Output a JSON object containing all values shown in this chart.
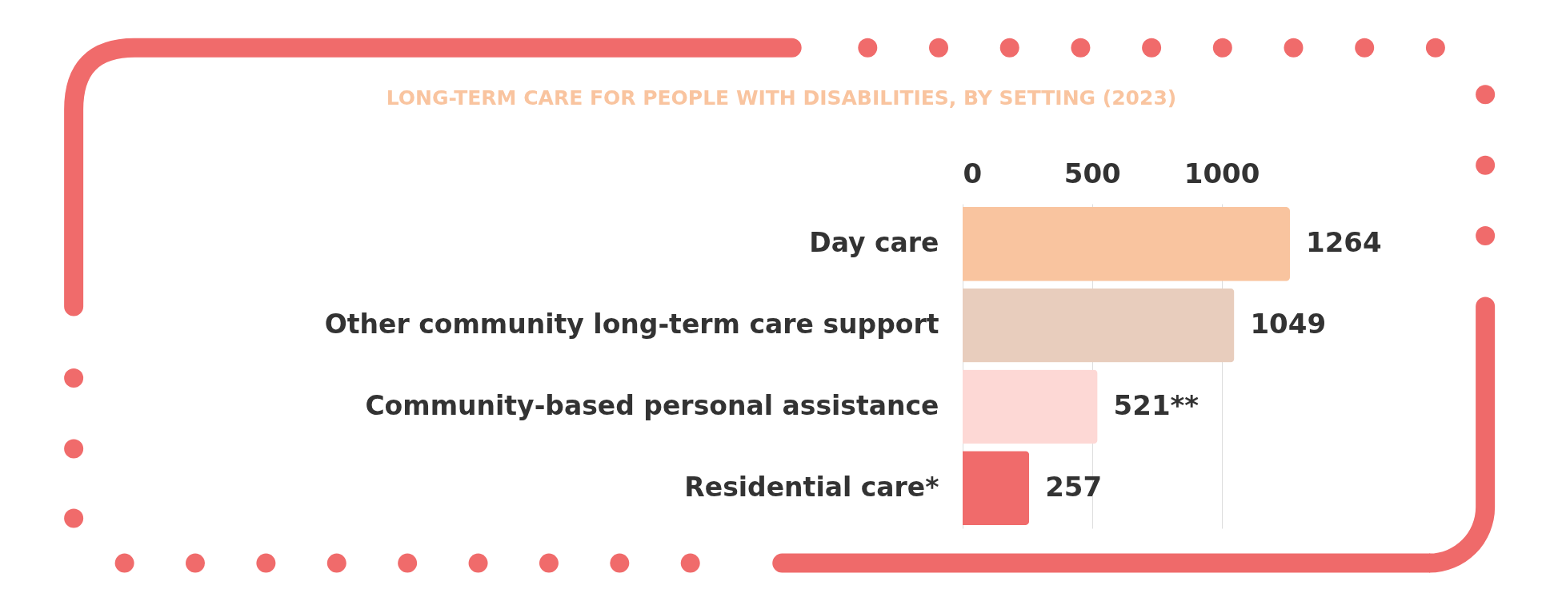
{
  "chart_data": {
    "type": "bar",
    "orientation": "horizontal",
    "title": "LONG-TERM CARE FOR PEOPLE WITH DISABILITIES, BY SETTING (2023)",
    "categories": [
      "Day care",
      "Other community long-term care support",
      "Community-based personal assistance",
      "Residential care*"
    ],
    "values": [
      1264,
      1049,
      521,
      257
    ],
    "colors": [
      "#f9c49f",
      "#e8cdbd",
      "#fdd8d5",
      "#f06b6b"
    ],
    "value_labels": [
      "1264",
      "1049",
      "521**",
      "257"
    ],
    "xlim": [
      0,
      1264
    ],
    "xticks": [
      0,
      500,
      1000
    ],
    "grid": "x",
    "legend": false
  }
}
